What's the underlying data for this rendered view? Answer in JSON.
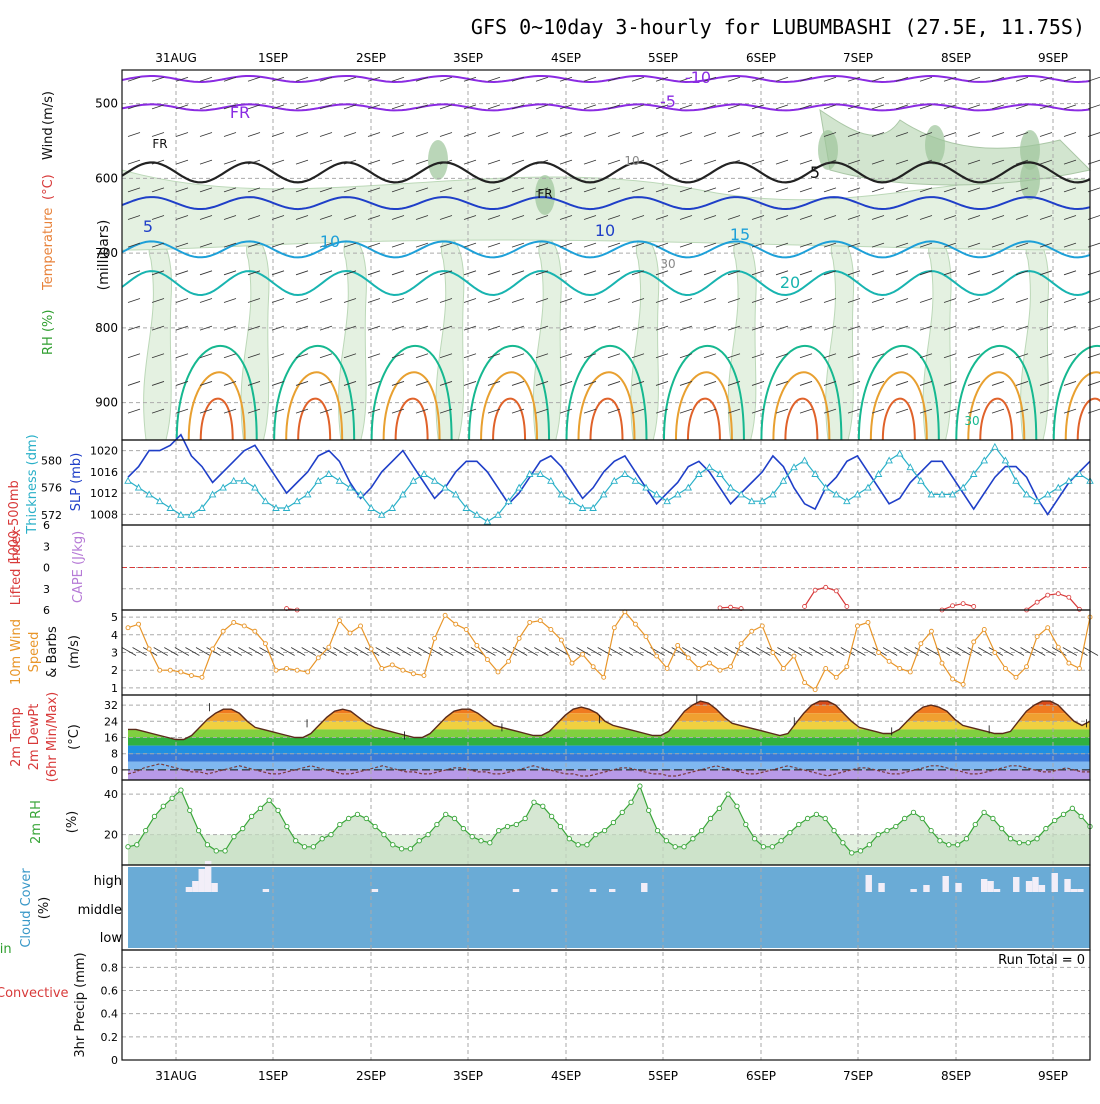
{
  "title": "GFS 0~10day 3-hourly for LUBUMBASHI (27.5E, 11.75S)",
  "colors": {
    "rh_green": "#2e9e2e",
    "temp_label": "#e8823a",
    "wind_label": "#8a2be2",
    "slp": "#1f3fc8",
    "thickness": "#2ab0c8",
    "lifted": "#d83a3a",
    "cape": "#b67ad6",
    "wind10": "#e8962a",
    "rh2": "#3aa63a",
    "cloud": "#6aabd6",
    "precip_total": "#2e9e2e",
    "precip_conv": "#d83a3a"
  },
  "chart_data": [
    {
      "id": "upper_air",
      "type": "contour",
      "xlabels": [
        "31AUG",
        "1SEP",
        "2SEP",
        "3SEP",
        "4SEP",
        "5SEP",
        "6SEP",
        "7SEP",
        "8SEP",
        "9SEP"
      ],
      "xlabels_bottom": [
        "31AUG",
        "1SEP",
        "2SEP",
        "3SEP",
        "4SEP",
        "5SEP",
        "6SEP",
        "7SEP",
        "8SEP",
        "9SEP"
      ],
      "ylabel_parts": [
        "RH (%)",
        "Temperature",
        " (°C)",
        "Wind",
        " (m/s)"
      ],
      "ylabel_units": "(millibars)",
      "yticks": [
        500,
        600,
        700,
        800,
        900
      ],
      "ylim": [
        455,
        950
      ],
      "contour_labels": [
        "-10",
        "-5",
        "FR",
        "FR",
        "FR",
        "5",
        "5",
        "10",
        "10",
        "15",
        "20",
        "30",
        "30",
        "10"
      ]
    },
    {
      "id": "slp_thickness",
      "type": "line",
      "ylabel_left": [
        "1000-500mb",
        "Thickness (dm)"
      ],
      "ylabel_right": "SLP (mb)",
      "left_ticks": [
        572,
        576,
        580
      ],
      "right_ticks": [
        1008,
        1012,
        1016,
        1020
      ],
      "ylim_thickness": [
        570.5,
        583
      ],
      "ylim_slp": [
        1006,
        1022
      ],
      "slp": [
        1015,
        1017,
        1020,
        1020,
        1021,
        1023,
        1019,
        1017,
        1014,
        1016,
        1018,
        1020,
        1021,
        1018,
        1015,
        1012,
        1014,
        1016,
        1019,
        1020,
        1018,
        1014,
        1011,
        1013,
        1016,
        1018,
        1020,
        1017,
        1014,
        1011,
        1013,
        1016,
        1018,
        1018,
        1016,
        1013,
        1010,
        1012,
        1015,
        1018,
        1019,
        1017,
        1014,
        1011,
        1013,
        1016,
        1018,
        1019,
        1016,
        1013,
        1010,
        1012,
        1014,
        1017,
        1018,
        1016,
        1013,
        1010,
        1012,
        1014,
        1016,
        1019,
        1017,
        1013,
        1010,
        1009,
        1013,
        1015,
        1018,
        1019,
        1016,
        1013,
        1010,
        1011,
        1014,
        1016,
        1018,
        1018,
        1015,
        1012,
        1009,
        1012,
        1015,
        1017,
        1017,
        1015,
        1011,
        1008,
        1011,
        1014,
        1016,
        1018
      ],
      "thickness": [
        577,
        576,
        575,
        574,
        573,
        572,
        572,
        573,
        575,
        576,
        577,
        577,
        576,
        574,
        573,
        573,
        574,
        575,
        577,
        578,
        577,
        576,
        575,
        573,
        572,
        573,
        575,
        577,
        578,
        577,
        576,
        575,
        573,
        572,
        571,
        572,
        574,
        576,
        578,
        578,
        577,
        575,
        574,
        573,
        573,
        575,
        577,
        578,
        577,
        576,
        575,
        574,
        575,
        576,
        578,
        579,
        578,
        576,
        575,
        574,
        574,
        575,
        577,
        579,
        580,
        578,
        576,
        575,
        574,
        575,
        576,
        578,
        580,
        581,
        579,
        577,
        575,
        575,
        575,
        576,
        578,
        580,
        582,
        580,
        577,
        575,
        574,
        575,
        576,
        577,
        578,
        577
      ]
    },
    {
      "id": "lifted_cape",
      "type": "line",
      "ylabel_parts": [
        "Lifted Index",
        "CAPE (J/kg)"
      ],
      "yticks": [
        -6,
        -3,
        0,
        3,
        6
      ],
      "ylim": [
        -6,
        6
      ],
      "reference_line": 0,
      "lifted_index": [
        6.5,
        6.8,
        7.0,
        6.8,
        6.5,
        6.8,
        7.0,
        6.8,
        6.5,
        6.3,
        6.5,
        6.8,
        7.0,
        6.6,
        6.1,
        5.8,
        6.0,
        6.5,
        6.8,
        6.9,
        6.8,
        6.6,
        6.5,
        6.7,
        6.9,
        6.8,
        6.6,
        6.4,
        6.4,
        6.6,
        6.8,
        6.9,
        6.7,
        6.5,
        6.3,
        6.5,
        6.8,
        6.9,
        6.8,
        6.6,
        6.4,
        6.2,
        6.1,
        6.3,
        6.6,
        6.8,
        6.9,
        6.7,
        6.5,
        6.2,
        6.1,
        6.4,
        6.7,
        6.9,
        6.7,
        6.3,
        5.7,
        5.6,
        5.8,
        6.2,
        6.6,
        6.8,
        6.6,
        6.2,
        5.5,
        3.2,
        2.8,
        3.3,
        5.5,
        6.6,
        6.8,
        6.7,
        6.6,
        6.4,
        6.5,
        6.7,
        6.6,
        6.0,
        5.4,
        5.1,
        5.5,
        6.2,
        6.7,
        6.8,
        6.6,
        6.0,
        4.9,
        3.9,
        3.7,
        4.2,
        5.9,
        6.7
      ]
    },
    {
      "id": "wind10",
      "type": "line",
      "ylabel_parts": [
        "10m Wind",
        "Speed",
        "& Barbs",
        "(m/s)"
      ],
      "yticks": [
        1,
        2,
        3,
        4,
        5
      ],
      "ylim": [
        0.6,
        5.4
      ],
      "speed": [
        4.4,
        4.6,
        3.2,
        2.0,
        2.0,
        1.9,
        1.7,
        1.6,
        3.2,
        4.2,
        4.7,
        4.5,
        4.2,
        3.5,
        2.0,
        2.1,
        2.0,
        1.9,
        2.7,
        3.3,
        4.8,
        4.1,
        4.5,
        3.2,
        2.1,
        2.3,
        2.0,
        1.8,
        1.7,
        3.8,
        5.1,
        4.6,
        4.3,
        3.4,
        2.6,
        1.9,
        2.5,
        3.8,
        4.7,
        4.8,
        4.3,
        3.7,
        2.4,
        2.9,
        2.2,
        1.6,
        4.4,
        5.3,
        4.6,
        3.9,
        2.8,
        2.1,
        3.4,
        2.7,
        2.1,
        2.4,
        2.0,
        2.2,
        3.5,
        4.2,
        4.5,
        3.0,
        2.1,
        2.8,
        1.3,
        0.9,
        2.1,
        1.6,
        2.2,
        4.5,
        4.7,
        3.0,
        2.5,
        2.1,
        1.9,
        3.5,
        4.2,
        2.4,
        1.5,
        1.2,
        3.6,
        4.3,
        3.0,
        2.1,
        1.6,
        2.2,
        3.9,
        4.4,
        3.3,
        2.4,
        2.1,
        5.0
      ]
    },
    {
      "id": "temp2m",
      "type": "area",
      "ylabel_parts": [
        "2m Temp",
        "2m DewPt",
        "(6hr Min/Max)",
        "(°C)"
      ],
      "yticks": [
        0,
        8,
        16,
        24,
        32
      ],
      "ylim": [
        -5,
        37
      ],
      "temp": [
        20,
        20,
        19,
        18,
        17,
        16,
        15,
        15,
        17,
        21,
        25,
        28,
        30,
        30,
        28,
        24,
        21,
        20,
        19,
        18,
        17,
        16,
        16,
        18,
        22,
        26,
        29,
        30,
        29,
        26,
        23,
        21,
        20,
        19,
        18,
        17,
        16,
        16,
        18,
        22,
        26,
        29,
        30,
        30,
        28,
        25,
        22,
        21,
        20,
        19,
        18,
        17,
        17,
        19,
        23,
        27,
        30,
        31,
        30,
        28,
        24,
        22,
        21,
        20,
        19,
        18,
        17,
        17,
        19,
        24,
        29,
        32,
        34,
        33,
        30,
        26,
        23,
        22,
        21,
        20,
        19,
        18,
        17,
        18,
        23,
        28,
        32,
        34,
        34,
        32,
        28,
        24,
        21,
        20,
        19,
        18,
        18,
        20,
        24,
        28,
        31,
        32,
        31,
        29,
        25,
        22,
        21,
        20,
        19,
        18,
        18,
        19,
        24,
        29,
        32,
        34,
        34,
        32,
        28,
        24,
        22,
        24
      ],
      "dewpoint": [
        -2,
        -1,
        1,
        2,
        3,
        2,
        1,
        0,
        -1,
        -1,
        -2,
        -1,
        0,
        1,
        2,
        1,
        0,
        -1,
        -2,
        -2,
        -1,
        0,
        1,
        2,
        1,
        0,
        -1,
        -2,
        -2,
        -1,
        0,
        1,
        2,
        1,
        0,
        -1,
        -1,
        -2,
        -2,
        -1,
        0,
        1,
        1,
        0,
        -1,
        -1,
        -2,
        -2,
        -1,
        0,
        1,
        2,
        1,
        0,
        -1,
        -2,
        -2,
        -3,
        -3,
        -2,
        -1,
        0,
        1,
        1,
        0,
        -1,
        -2,
        -2,
        -3,
        -3,
        -2,
        -1,
        0,
        1,
        2,
        1,
        0,
        -1,
        -2,
        -2,
        -1,
        0,
        1,
        2,
        1,
        0,
        -1,
        -2,
        -3,
        -2,
        -1,
        0,
        1,
        1,
        0,
        -1,
        -2,
        -2,
        -1,
        0,
        1,
        2,
        2,
        1,
        0,
        -1,
        -2,
        -2,
        -1,
        0,
        1,
        2,
        2,
        1,
        0,
        -1,
        -1,
        0,
        1,
        0,
        -1,
        -1
      ]
    },
    {
      "id": "rh2m",
      "type": "area",
      "ylabel_parts": [
        "2m RH",
        "(%)"
      ],
      "yticks": [
        20,
        40
      ],
      "ylim": [
        5,
        47
      ],
      "rh": [
        14,
        15,
        22,
        29,
        34,
        38,
        42,
        32,
        22,
        15,
        12,
        12,
        19,
        23,
        29,
        33,
        37,
        32,
        24,
        17,
        14,
        14,
        18,
        20,
        25,
        28,
        30,
        28,
        24,
        20,
        15,
        13,
        13,
        17,
        20,
        25,
        30,
        28,
        23,
        19,
        17,
        16,
        22,
        24,
        25,
        28,
        36,
        34,
        29,
        24,
        18,
        15,
        15,
        20,
        22,
        26,
        31,
        36,
        44,
        32,
        22,
        17,
        14,
        14,
        18,
        22,
        28,
        33,
        40,
        34,
        25,
        18,
        14,
        14,
        17,
        21,
        25,
        28,
        30,
        28,
        22,
        16,
        11,
        12,
        15,
        20,
        22,
        24,
        28,
        31,
        28,
        22,
        17,
        15,
        15,
        18,
        25,
        31,
        28,
        23,
        18,
        16,
        16,
        18,
        23,
        27,
        30,
        33,
        29,
        24
      ]
    },
    {
      "id": "cloud",
      "type": "bar",
      "ylabel_parts": [
        "Cloud Cover",
        "(%)"
      ],
      "ylabels": [
        "high",
        "middle",
        "low"
      ],
      "high": [
        0,
        0,
        0,
        0,
        0,
        0,
        0,
        0,
        0,
        4,
        10,
        22,
        30,
        8,
        0,
        0,
        0,
        0,
        0,
        0,
        0,
        0,
        0,
        0,
        0,
        0,
        0,
        0,
        0,
        0,
        0,
        0,
        0,
        0,
        0,
        0,
        0,
        0,
        0,
        0,
        0,
        0,
        0,
        0,
        0,
        0,
        0,
        0,
        0,
        0,
        0,
        0,
        0,
        0,
        0,
        0,
        0,
        0,
        0,
        0,
        0,
        0,
        0,
        0,
        0,
        0,
        0,
        0,
        0,
        0,
        0,
        0,
        0,
        0,
        0,
        0,
        0,
        0,
        0,
        0,
        0,
        0,
        0,
        0,
        0,
        0,
        0,
        0,
        0,
        0,
        0,
        0,
        0,
        0,
        0,
        0,
        0,
        0,
        0,
        0,
        0,
        0,
        0,
        0,
        0,
        0,
        0,
        0,
        0,
        0,
        0,
        0,
        0,
        0,
        0,
        0,
        0,
        0,
        0,
        0
      ],
      "high_extra": [
        [
          21,
          2
        ],
        [
          38,
          2
        ],
        [
          60,
          2
        ],
        [
          66,
          2
        ],
        [
          72,
          2
        ],
        [
          75,
          2
        ],
        [
          80,
          8
        ],
        [
          115,
          16
        ],
        [
          117,
          8
        ],
        [
          122,
          2
        ],
        [
          124,
          6
        ],
        [
          127,
          15
        ],
        [
          129,
          8
        ],
        [
          133,
          12
        ],
        [
          134,
          10
        ],
        [
          135,
          2
        ],
        [
          138,
          14
        ],
        [
          140,
          10
        ],
        [
          141,
          14
        ],
        [
          142,
          6
        ],
        [
          144,
          18
        ],
        [
          146,
          12
        ],
        [
          147,
          2
        ],
        [
          148,
          2
        ]
      ]
    },
    {
      "id": "precip",
      "type": "bar",
      "ylabel_parts": [
        "3hr Precip (mm)",
        "Total / Rain",
        "Convective"
      ],
      "yticks": [
        0,
        0.2,
        0.4,
        0.6,
        0.8
      ],
      "ylim": [
        0,
        0.95
      ],
      "run_total_label": "Run Total = 0",
      "values": []
    }
  ]
}
